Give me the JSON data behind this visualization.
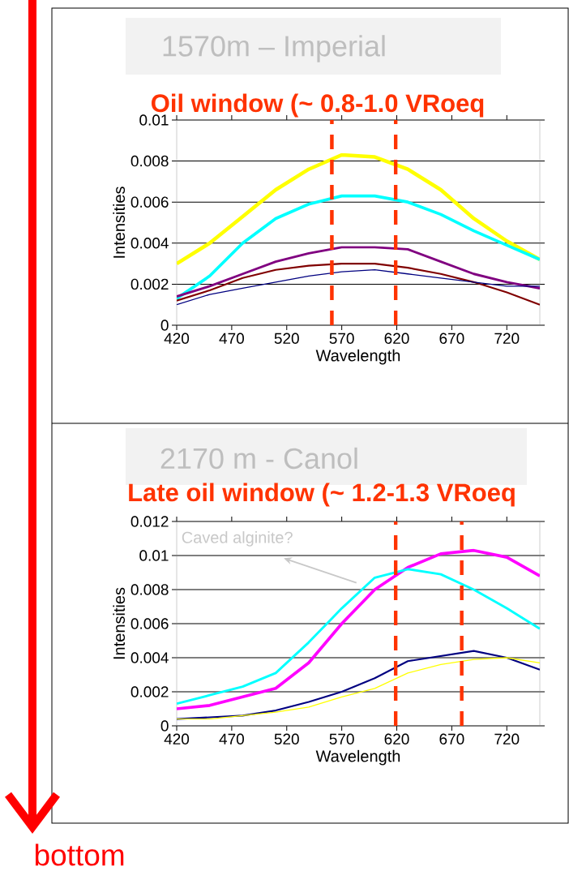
{
  "chart_data": [
    {
      "type": "line",
      "subtitle": "1570m – Imperial",
      "title": "Oil window (~ 0.8-1.0 VRoeq",
      "xlabel": "Wavelength",
      "ylabel": "Intensities",
      "x": [
        420,
        450,
        480,
        510,
        540,
        570,
        600,
        630,
        660,
        690,
        720,
        750
      ],
      "series": [
        {
          "color": "#ffff00",
          "values": [
            0.003,
            0.004,
            0.0053,
            0.0066,
            0.0076,
            0.0083,
            0.0082,
            0.0076,
            0.0066,
            0.0052,
            0.0041,
            0.0032
          ]
        },
        {
          "color": "#00ffff",
          "values": [
            0.0013,
            0.0024,
            0.004,
            0.0052,
            0.0059,
            0.0063,
            0.0063,
            0.006,
            0.0054,
            0.0046,
            0.0039,
            0.0032
          ]
        },
        {
          "color": "#800080",
          "values": [
            0.0014,
            0.0019,
            0.0025,
            0.0031,
            0.0035,
            0.0038,
            0.0038,
            0.0037,
            0.0031,
            0.0025,
            0.0021,
            0.0018
          ]
        },
        {
          "color": "#800000",
          "values": [
            0.0012,
            0.0017,
            0.0023,
            0.0027,
            0.0029,
            0.003,
            0.003,
            0.0028,
            0.0025,
            0.0021,
            0.0016,
            0.001
          ]
        },
        {
          "color": "#000080",
          "values": [
            0.001,
            0.0015,
            0.0018,
            0.0021,
            0.0024,
            0.0026,
            0.0027,
            0.0025,
            0.0023,
            0.0021,
            0.0019,
            0.0019
          ]
        }
      ],
      "xlim": [
        420,
        750
      ],
      "xticks": [
        420,
        470,
        520,
        570,
        620,
        670,
        720
      ],
      "ylim": [
        0,
        0.01
      ],
      "yticks": [
        0,
        0.002,
        0.004,
        0.006,
        0.008,
        0.01
      ],
      "grid": "y",
      "ref_lines": [
        {
          "axis": "x",
          "value": 561,
          "color": "#ff3300",
          "line_style": "dashed"
        },
        {
          "axis": "x",
          "value": 619,
          "color": "#ff3300",
          "line_style": "dashed"
        }
      ]
    },
    {
      "type": "line",
      "subtitle": "2170 m - Canol",
      "title": "Late oil window (~ 1.2-1.3 VRoeq",
      "xlabel": "Wavelength",
      "ylabel": "Intensities",
      "x": [
        420,
        450,
        480,
        510,
        540,
        570,
        600,
        630,
        660,
        690,
        720,
        750
      ],
      "series": [
        {
          "color": "#ff00ff",
          "values": [
            0.001,
            0.0012,
            0.0017,
            0.0022,
            0.0037,
            0.006,
            0.008,
            0.0093,
            0.0101,
            0.0103,
            0.0099,
            0.0088
          ]
        },
        {
          "color": "#00ffff",
          "values": [
            0.0013,
            0.0018,
            0.0023,
            0.0031,
            0.0049,
            0.0069,
            0.0087,
            0.0092,
            0.0089,
            0.008,
            0.0069,
            0.0057
          ]
        },
        {
          "color": "#000080",
          "values": [
            0.0004,
            0.0005,
            0.0006,
            0.0009,
            0.0014,
            0.002,
            0.0028,
            0.0038,
            0.0041,
            0.0044,
            0.004,
            0.0033
          ]
        },
        {
          "color": "#ffff00",
          "values": [
            0.0004,
            0.0004,
            0.0006,
            0.0008,
            0.0011,
            0.0017,
            0.0022,
            0.0031,
            0.0036,
            0.0039,
            0.004,
            0.0037
          ]
        }
      ],
      "xlim": [
        420,
        750
      ],
      "xticks": [
        420,
        470,
        520,
        570,
        620,
        670,
        720
      ],
      "ylim": [
        0,
        0.012
      ],
      "yticks": [
        0,
        0.002,
        0.004,
        0.006,
        0.008,
        0.01,
        0.012
      ],
      "grid": "y",
      "ref_lines": [
        {
          "axis": "x",
          "value": 619,
          "color": "#ff3300",
          "line_style": "dashed"
        },
        {
          "axis": "x",
          "value": 679,
          "color": "#ff3300",
          "line_style": "dashed"
        }
      ],
      "annotations": [
        "Caved alginite?",
        "bottom"
      ]
    }
  ]
}
